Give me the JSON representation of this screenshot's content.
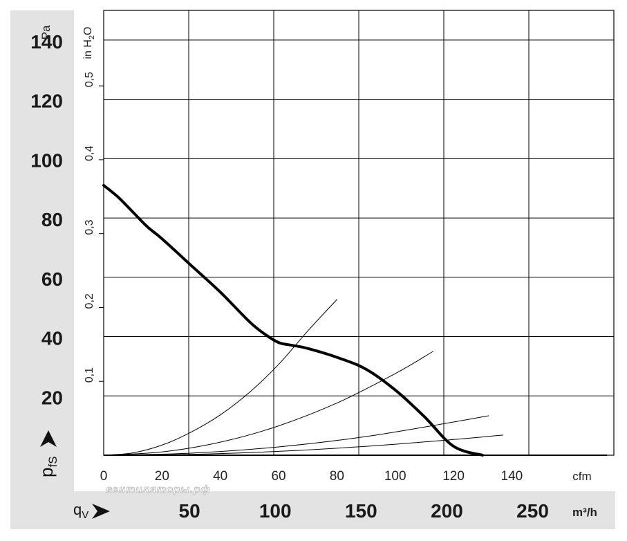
{
  "chart_data": {
    "type": "line",
    "left_axis": {
      "unit": "Pa",
      "ticks": [
        "20",
        "40",
        "60",
        "80",
        "100",
        "120",
        "140"
      ],
      "tick_values": [
        20,
        40,
        60,
        80,
        100,
        120,
        140
      ],
      "range": [
        0,
        150
      ]
    },
    "inner_axis": {
      "unit": "in H",
      "unit_sub": "2",
      "unit_tail": "O",
      "ticks": [
        "0,1",
        "0,2",
        "0,3",
        "0,4",
        "0,5"
      ],
      "tick_values": [
        0.1,
        0.2,
        0.3,
        0.4,
        0.5
      ]
    },
    "x_axis_cfm": {
      "unit": "cfm",
      "ticks": [
        "0",
        "20",
        "40",
        "60",
        "80",
        "100",
        "120",
        "140"
      ],
      "tick_values": [
        0,
        20,
        40,
        60,
        80,
        100,
        120,
        140
      ],
      "range": [
        0,
        175
      ]
    },
    "x_axis_m3h": {
      "unit": "m³/h",
      "ticks": [
        "50",
        "100",
        "150",
        "200",
        "250"
      ],
      "tick_values": [
        50,
        100,
        150,
        200,
        250
      ]
    },
    "y_symbol": {
      "main": "p",
      "sub": "fS"
    },
    "x_symbol": {
      "main": "q",
      "sub": "V"
    },
    "watermark": "вентиляторы.рф",
    "grid": true,
    "series": [
      {
        "role": "fan-curve",
        "x": [
          0,
          5,
          10,
          15,
          20,
          30,
          40,
          50,
          55,
          60,
          65,
          70,
          80,
          90,
          100,
          110,
          120,
          130
        ],
        "y": [
          91,
          87,
          82,
          77,
          73,
          64,
          55,
          45,
          41,
          38,
          37,
          36,
          33,
          29,
          22,
          13,
          3,
          0
        ],
        "color": "#000000"
      },
      {
        "role": "system-curve",
        "x": [
          0,
          10,
          20,
          30,
          40,
          50,
          60,
          70,
          80
        ],
        "y": [
          0,
          0.8,
          3.4,
          7.8,
          13.6,
          21.2,
          30.6,
          41.9,
          52.5
        ],
        "color": "#000000"
      },
      {
        "role": "system-curve",
        "x": [
          0,
          20,
          40,
          60,
          80,
          100,
          113
        ],
        "y": [
          0,
          1.1,
          4.4,
          9.9,
          17.6,
          27.5,
          35
        ],
        "color": "#000000"
      },
      {
        "role": "system-curve",
        "x": [
          0,
          30,
          60,
          90,
          120,
          132
        ],
        "y": [
          0,
          0.7,
          2.8,
          6.3,
          11.2,
          13.3
        ],
        "color": "#000000"
      },
      {
        "role": "system-curve",
        "x": [
          0,
          30,
          60,
          90,
          120,
          137
        ],
        "y": [
          0,
          0.3,
          1.3,
          3,
          5.3,
          6.8
        ],
        "color": "#000000"
      }
    ]
  }
}
